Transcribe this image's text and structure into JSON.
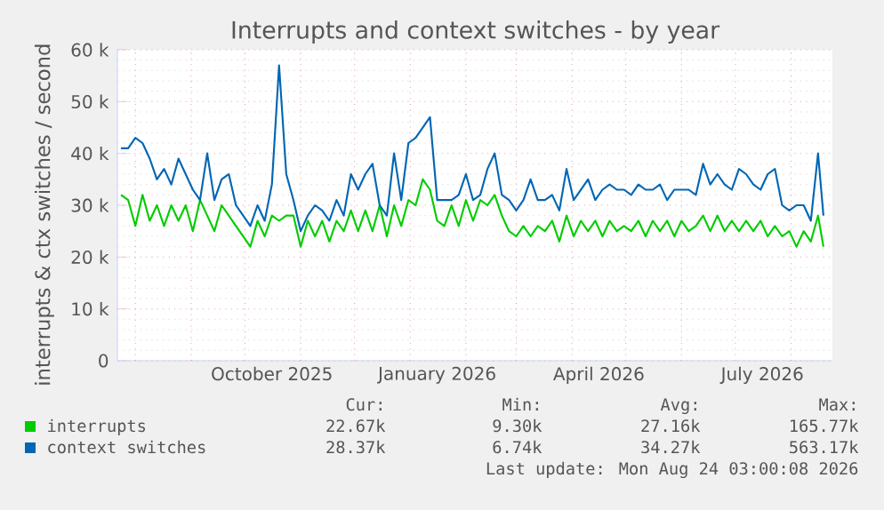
{
  "chart_data": {
    "type": "line",
    "title": "Interrupts and context switches - by year",
    "ylabel": "interrupts & ctx switches / second",
    "x": [
      "2025-07-24",
      "2025-07-28",
      "2025-08-01",
      "2025-08-05",
      "2025-08-09",
      "2025-08-13",
      "2025-08-17",
      "2025-08-21",
      "2025-08-25",
      "2025-08-29",
      "2025-09-02",
      "2025-09-06",
      "2025-09-10",
      "2025-09-14",
      "2025-09-18",
      "2025-09-22",
      "2025-09-26",
      "2025-09-30",
      "2025-10-04",
      "2025-10-08",
      "2025-10-12",
      "2025-10-16",
      "2025-10-20",
      "2025-10-24",
      "2025-10-28",
      "2025-11-01",
      "2025-11-05",
      "2025-11-09",
      "2025-11-13",
      "2025-11-17",
      "2025-11-21",
      "2025-11-25",
      "2025-11-29",
      "2025-12-03",
      "2025-12-07",
      "2025-12-11",
      "2025-12-15",
      "2025-12-19",
      "2025-12-23",
      "2025-12-27",
      "2025-12-31",
      "2026-01-04",
      "2026-01-08",
      "2026-01-12",
      "2026-01-16",
      "2026-01-20",
      "2026-01-24",
      "2026-01-28",
      "2026-02-01",
      "2026-02-05",
      "2026-02-09",
      "2026-02-13",
      "2026-02-17",
      "2026-02-21",
      "2026-02-25",
      "2026-03-01",
      "2026-03-05",
      "2026-03-09",
      "2026-03-13",
      "2026-03-17",
      "2026-03-21",
      "2026-03-25",
      "2026-03-29",
      "2026-04-02",
      "2026-04-06",
      "2026-04-10",
      "2026-04-14",
      "2026-04-18",
      "2026-04-22",
      "2026-04-26",
      "2026-04-30",
      "2026-05-04",
      "2026-05-08",
      "2026-05-12",
      "2026-05-16",
      "2026-05-20",
      "2026-05-24",
      "2026-05-28",
      "2026-06-01",
      "2026-06-05",
      "2026-06-09",
      "2026-06-13",
      "2026-06-17",
      "2026-06-21",
      "2026-06-25",
      "2026-06-29",
      "2026-07-03",
      "2026-07-07",
      "2026-07-11",
      "2026-07-15",
      "2026-07-19",
      "2026-07-23",
      "2026-07-27",
      "2026-07-31",
      "2026-08-04",
      "2026-08-08",
      "2026-08-12",
      "2026-08-16",
      "2026-08-19"
    ],
    "series": [
      {
        "name": "interrupts",
        "color": "#00cc00",
        "values": [
          32000,
          31000,
          26000,
          32000,
          27000,
          30000,
          26000,
          30000,
          27000,
          30000,
          25000,
          31000,
          28000,
          25000,
          30000,
          28000,
          26000,
          24000,
          22000,
          27000,
          24000,
          28000,
          27000,
          28000,
          28000,
          22000,
          27000,
          24000,
          27000,
          23000,
          27000,
          25000,
          29000,
          25000,
          29000,
          25000,
          30000,
          24000,
          30000,
          26000,
          31000,
          30000,
          35000,
          33000,
          27000,
          26000,
          30000,
          26000,
          31000,
          27000,
          31000,
          30000,
          32000,
          28000,
          25000,
          24000,
          26000,
          24000,
          26000,
          25000,
          27000,
          23000,
          28000,
          24000,
          27000,
          25000,
          27000,
          24000,
          27000,
          25000,
          26000,
          25000,
          27000,
          24000,
          27000,
          25000,
          27000,
          24000,
          27000,
          25000,
          26000,
          28000,
          25000,
          28000,
          25000,
          27000,
          25000,
          27000,
          25000,
          27000,
          24000,
          26000,
          24000,
          25000,
          22000,
          25000,
          23000,
          28000,
          22000
        ]
      },
      {
        "name": "context switches",
        "color": "#0066b3",
        "values": [
          41000,
          41000,
          43000,
          42000,
          39000,
          35000,
          37000,
          34000,
          39000,
          36000,
          33000,
          31000,
          40000,
          31000,
          35000,
          36000,
          30000,
          28000,
          26000,
          30000,
          27000,
          34000,
          57000,
          36000,
          31000,
          25000,
          28000,
          30000,
          29000,
          27000,
          31000,
          28000,
          36000,
          33000,
          36000,
          38000,
          30000,
          28000,
          40000,
          31000,
          42000,
          43000,
          45000,
          47000,
          31000,
          31000,
          31000,
          32000,
          36000,
          31000,
          32000,
          37000,
          40000,
          32000,
          31000,
          29000,
          31000,
          35000,
          31000,
          31000,
          32000,
          29000,
          37000,
          31000,
          33000,
          35000,
          31000,
          33000,
          34000,
          33000,
          33000,
          32000,
          34000,
          33000,
          33000,
          34000,
          31000,
          33000,
          33000,
          33000,
          32000,
          38000,
          34000,
          36000,
          34000,
          33000,
          37000,
          36000,
          34000,
          33000,
          36000,
          37000,
          30000,
          29000,
          30000,
          30000,
          27000,
          40000,
          28000
        ]
      }
    ],
    "xlim": [
      "2025-07-22",
      "2026-08-24"
    ],
    "xticks": [
      {
        "value": "2025-08-01",
        "label": null
      },
      {
        "value": "2025-09-01",
        "label": null
      },
      {
        "value": "2025-10-01",
        "label": null
      },
      {
        "value": "2025-10-16",
        "label": "October 2025"
      },
      {
        "value": "2025-11-01",
        "label": null
      },
      {
        "value": "2025-12-01",
        "label": null
      },
      {
        "value": "2026-01-01",
        "label": null
      },
      {
        "value": "2026-01-16",
        "label": "January 2026"
      },
      {
        "value": "2026-02-01",
        "label": null
      },
      {
        "value": "2026-03-01",
        "label": null
      },
      {
        "value": "2026-04-01",
        "label": null
      },
      {
        "value": "2026-04-16",
        "label": "April 2026"
      },
      {
        "value": "2026-05-01",
        "label": null
      },
      {
        "value": "2026-06-01",
        "label": null
      },
      {
        "value": "2026-07-01",
        "label": null
      },
      {
        "value": "2026-07-16",
        "label": "July 2026"
      },
      {
        "value": "2026-08-01",
        "label": null
      }
    ],
    "ylim": [
      0,
      60000
    ],
    "yticks": [
      0,
      {
        "value": 10000,
        "label": "10 k"
      },
      {
        "value": 20000,
        "label": "20 k"
      },
      {
        "value": 30000,
        "label": "30 k"
      },
      {
        "value": 40000,
        "label": "40 k"
      },
      {
        "value": 50000,
        "label": "50 k"
      },
      {
        "value": 60000,
        "label": "60 k"
      }
    ],
    "grid": true,
    "legend": "bottom",
    "marker": "none",
    "line_style": "solid",
    "annotations": [
      "Cur:",
      "Min:",
      "Avg:",
      "Max:",
      "22.67k",
      "9.30k",
      "27.16k",
      "165.77k",
      "28.37k",
      "6.74k",
      "34.27k",
      "563.17k",
      "Last update: Mon Aug 24 03:00:08 2026"
    ]
  }
}
